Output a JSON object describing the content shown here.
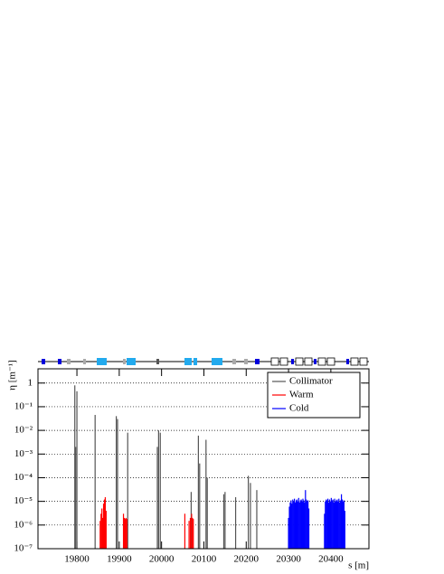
{
  "chart_data": {
    "type": "spike",
    "log_y": true,
    "grid": true,
    "legend": "top-right",
    "ylabel": "η [m⁻¹]",
    "xlabel": "s [m]",
    "xlim": [
      19708,
      20490
    ],
    "ylim": [
      1e-07,
      4
    ],
    "xticks": [
      19800,
      19900,
      20000,
      20100,
      20200,
      20300,
      20400
    ],
    "yticks": [
      {
        "value": 1e-07,
        "label": "10⁻⁷"
      },
      {
        "value": 1e-06,
        "label": "10⁻⁶"
      },
      {
        "value": 1e-05,
        "label": "10⁻⁵"
      },
      {
        "value": 0.0001,
        "label": "10⁻⁴"
      },
      {
        "value": 0.001,
        "label": "10⁻³"
      },
      {
        "value": 0.01,
        "label": "10⁻²"
      },
      {
        "value": 0.1,
        "label": "10⁻¹"
      },
      1
    ],
    "series": [
      {
        "name": "Collimator",
        "color": "#555555",
        "x": [
          19795,
          19797,
          19800,
          19843,
          19893,
          19896,
          19920,
          19990,
          19993,
          19997,
          20070,
          20072,
          20087,
          20090,
          20105,
          20108,
          20147,
          20150,
          20175,
          20205,
          20210,
          20225
        ],
        "values": [
          0.8,
          0.002,
          0.45,
          0.045,
          0.04,
          0.03,
          0.008,
          0.002,
          0.01,
          0.008,
          2.5e-05,
          2e-06,
          0.006,
          0.0004,
          0.004,
          0.0001,
          2e-05,
          2.5e-05,
          1.5e-05,
          0.00012,
          6e-05,
          3e-05
        ]
      },
      {
        "name": "Warm",
        "color": "#ff0000",
        "x": [
          19855,
          19857,
          19859,
          19861,
          19863,
          19865,
          19867,
          19869,
          19910,
          19912,
          19914,
          19916,
          19918,
          20055,
          20065,
          20068,
          20071,
          20073,
          20075
        ],
        "values": [
          1.5e-06,
          3e-06,
          5e-06,
          2e-06,
          8e-06,
          1.2e-05,
          1.5e-05,
          4e-06,
          3e-06,
          2e-06,
          1.8e-06,
          2e-06,
          1.8e-06,
          3e-06,
          1.5e-06,
          2e-06,
          3e-06,
          2e-06,
          1.8e-06
        ]
      },
      {
        "name": "Cold",
        "color": "#0000ff",
        "x": [
          20300,
          20302,
          20304,
          20306,
          20308,
          20310,
          20312,
          20314,
          20316,
          20318,
          20320,
          20322,
          20324,
          20326,
          20328,
          20330,
          20332,
          20334,
          20336,
          20338,
          20340,
          20342,
          20344,
          20346,
          20348,
          20385,
          20387,
          20389,
          20391,
          20393,
          20395,
          20397,
          20399,
          20401,
          20403,
          20405,
          20407,
          20409,
          20411,
          20413,
          20415,
          20417,
          20419,
          20421,
          20423,
          20425,
          20427,
          20429,
          20431,
          20433
        ],
        "values": [
          2e-06,
          6e-06,
          9e-06,
          1.1e-05,
          8e-06,
          1.2e-05,
          1e-05,
          1.3e-05,
          9e-06,
          1.1e-05,
          1.2e-05,
          1e-05,
          1.4e-05,
          9e-06,
          1.1e-05,
          1.2e-05,
          1e-05,
          1.3e-05,
          1.1e-05,
          9e-06,
          3e-05,
          1.2e-05,
          1e-05,
          1.1e-05,
          5e-06,
          3e-06,
          1e-05,
          1.2e-05,
          1.1e-05,
          1.3e-05,
          9e-06,
          1.2e-05,
          1e-05,
          1.4e-05,
          1.1e-05,
          1.2e-05,
          9e-06,
          1.3e-05,
          1e-05,
          1.1e-05,
          1.2e-05,
          1e-05,
          1.3e-05,
          9e-06,
          1.1e-05,
          2e-05,
          1.2e-05,
          1e-05,
          1.1e-05,
          4e-06
        ]
      }
    ]
  }
}
